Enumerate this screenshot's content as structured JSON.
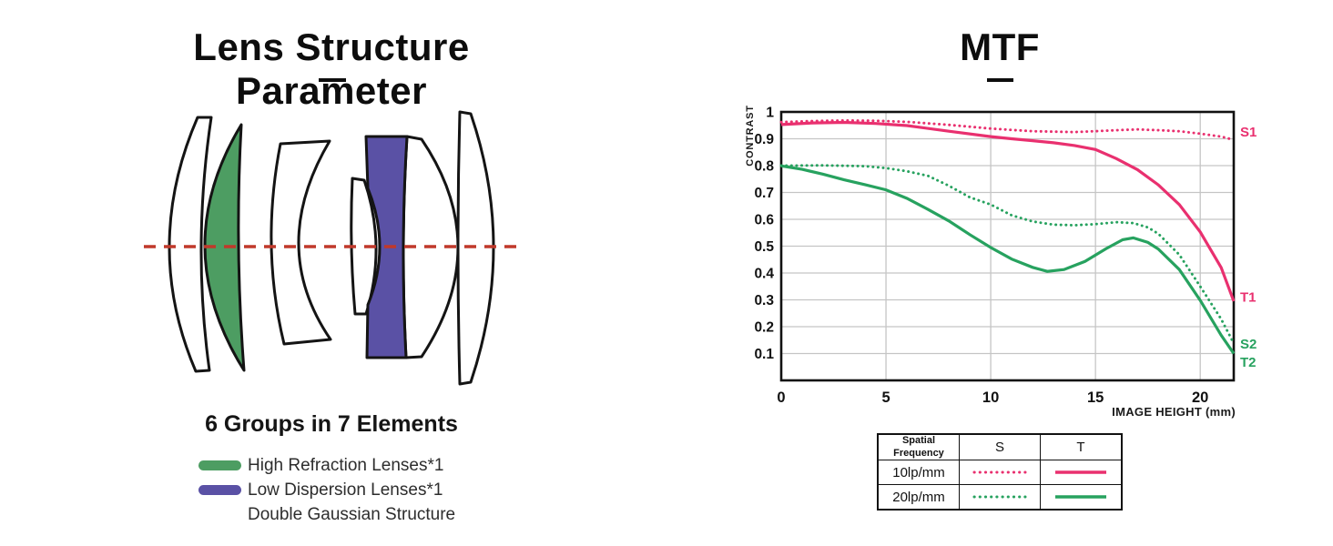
{
  "left_panel": {
    "title": "Lens Structure Parameter",
    "caption": "6 Groups in 7 Elements",
    "legend": {
      "high_refraction": "High Refraction Lenses*1",
      "low_dispersion": "Low Dispersion Lenses*1",
      "structure_note": "Double Gaussian Structure"
    }
  },
  "right_panel": {
    "title": "MTF",
    "table": {
      "headers": {
        "frequency": "Spatial Frequency",
        "s": "S",
        "t": "T"
      },
      "rows": [
        {
          "frequency": "10lp/mm",
          "color": "pink"
        },
        {
          "frequency": "20lp/mm",
          "color": "green"
        }
      ]
    }
  },
  "chart_data": {
    "type": "line",
    "title": "MTF",
    "xlabel": "IMAGE HEIGHT (mm)",
    "ylabel": "CONTRAST",
    "xlim": [
      0,
      21.6
    ],
    "ylim": [
      0,
      1
    ],
    "xticks": [
      0,
      5,
      10,
      15,
      20
    ],
    "yticks": [
      0.1,
      0.2,
      0.3,
      0.4,
      0.5,
      0.6,
      0.7,
      0.8,
      0.9,
      1
    ],
    "grid": true,
    "legend_position": "right-edge-labels",
    "series": [
      {
        "name": "S1",
        "frequency": "10lp/mm",
        "orientation": "sagittal",
        "style": "dotted",
        "color": "pink",
        "points": [
          [
            0,
            0.962
          ],
          [
            1.5,
            0.966
          ],
          [
            3,
            0.968
          ],
          [
            4.5,
            0.967
          ],
          [
            6,
            0.963
          ],
          [
            8,
            0.952
          ],
          [
            10,
            0.938
          ],
          [
            12,
            0.928
          ],
          [
            14,
            0.925
          ],
          [
            15,
            0.928
          ],
          [
            16,
            0.932
          ],
          [
            17,
            0.935
          ],
          [
            18,
            0.932
          ],
          [
            19,
            0.928
          ],
          [
            20,
            0.919
          ],
          [
            21,
            0.908
          ],
          [
            21.6,
            0.896
          ]
        ]
      },
      {
        "name": "T1",
        "frequency": "10lp/mm",
        "orientation": "tangential",
        "style": "solid",
        "color": "pink",
        "points": [
          [
            0,
            0.953
          ],
          [
            1.5,
            0.959
          ],
          [
            3,
            0.961
          ],
          [
            4.5,
            0.957
          ],
          [
            6,
            0.949
          ],
          [
            8,
            0.928
          ],
          [
            10,
            0.908
          ],
          [
            11,
            0.9
          ],
          [
            12,
            0.893
          ],
          [
            13,
            0.885
          ],
          [
            14,
            0.875
          ],
          [
            15,
            0.86
          ],
          [
            16,
            0.826
          ],
          [
            17,
            0.785
          ],
          [
            18,
            0.728
          ],
          [
            19,
            0.655
          ],
          [
            20,
            0.553
          ],
          [
            21,
            0.42
          ],
          [
            21.6,
            0.295
          ]
        ]
      },
      {
        "name": "S2",
        "frequency": "20lp/mm",
        "orientation": "sagittal",
        "style": "dotted",
        "color": "green",
        "points": [
          [
            0,
            0.8
          ],
          [
            2,
            0.801
          ],
          [
            4,
            0.798
          ],
          [
            5,
            0.791
          ],
          [
            6,
            0.779
          ],
          [
            7,
            0.762
          ],
          [
            8,
            0.725
          ],
          [
            9,
            0.682
          ],
          [
            10,
            0.655
          ],
          [
            11,
            0.615
          ],
          [
            12,
            0.592
          ],
          [
            13,
            0.58
          ],
          [
            14,
            0.578
          ],
          [
            15,
            0.582
          ],
          [
            16,
            0.589
          ],
          [
            16.8,
            0.586
          ],
          [
            17.5,
            0.57
          ],
          [
            18,
            0.546
          ],
          [
            19,
            0.468
          ],
          [
            20,
            0.35
          ],
          [
            21,
            0.228
          ],
          [
            21.6,
            0.138
          ]
        ]
      },
      {
        "name": "T2",
        "frequency": "20lp/mm",
        "orientation": "tangential",
        "style": "solid",
        "color": "green",
        "points": [
          [
            0,
            0.799
          ],
          [
            1,
            0.786
          ],
          [
            2,
            0.768
          ],
          [
            3,
            0.747
          ],
          [
            4,
            0.729
          ],
          [
            5,
            0.71
          ],
          [
            6,
            0.678
          ],
          [
            7,
            0.637
          ],
          [
            8,
            0.594
          ],
          [
            9,
            0.543
          ],
          [
            10,
            0.495
          ],
          [
            11,
            0.452
          ],
          [
            12,
            0.421
          ],
          [
            12.7,
            0.406
          ],
          [
            13.5,
            0.413
          ],
          [
            14.5,
            0.443
          ],
          [
            15.5,
            0.49
          ],
          [
            16.3,
            0.524
          ],
          [
            16.8,
            0.531
          ],
          [
            17.5,
            0.514
          ],
          [
            18,
            0.489
          ],
          [
            19,
            0.413
          ],
          [
            20,
            0.298
          ],
          [
            21,
            0.168
          ],
          [
            21.6,
            0.1
          ]
        ]
      }
    ],
    "curve_labels": [
      {
        "text": "S1",
        "y": 0.925,
        "color": "pink"
      },
      {
        "text": "T1",
        "y": 0.31,
        "color": "pink"
      },
      {
        "text": "S2",
        "y": 0.135,
        "color": "green"
      },
      {
        "text": "T2",
        "y": 0.068,
        "color": "green"
      }
    ]
  },
  "colors": {
    "pink": "#e9306f",
    "green": "#27a25f",
    "lens_green": "#4d9d62",
    "lens_purple": "#5a51a5",
    "axis_red": "#c0392b",
    "grid": "#c5c5c5",
    "ink": "#111111"
  }
}
